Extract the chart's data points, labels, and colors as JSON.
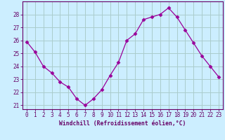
{
  "x": [
    0,
    1,
    2,
    3,
    4,
    5,
    6,
    7,
    8,
    9,
    10,
    11,
    12,
    13,
    14,
    15,
    16,
    17,
    18,
    19,
    20,
    21,
    22,
    23
  ],
  "y": [
    25.9,
    25.1,
    24.0,
    23.5,
    22.8,
    22.4,
    21.5,
    21.0,
    21.5,
    22.2,
    23.3,
    24.3,
    26.0,
    26.5,
    27.6,
    27.8,
    28.0,
    28.5,
    27.8,
    26.8,
    25.8,
    24.8,
    24.0,
    23.2
  ],
  "line_color": "#990099",
  "marker": "D",
  "marker_size": 2.5,
  "bg_color": "#cceeff",
  "grid_color": "#aacccc",
  "xlabel": "Windchill (Refroidissement éolien,°C)",
  "xlabel_color": "#660066",
  "tick_color": "#660066",
  "ylim": [
    20.7,
    29.0
  ],
  "yticks": [
    21,
    22,
    23,
    24,
    25,
    26,
    27,
    28
  ],
  "xlim": [
    -0.5,
    23.5
  ],
  "xticks": [
    0,
    1,
    2,
    3,
    4,
    5,
    6,
    7,
    8,
    9,
    10,
    11,
    12,
    13,
    14,
    15,
    16,
    17,
    18,
    19,
    20,
    21,
    22,
    23
  ],
  "xtick_labels": [
    "0",
    "1",
    "2",
    "3",
    "4",
    "5",
    "6",
    "7",
    "8",
    "9",
    "10",
    "11",
    "12",
    "13",
    "14",
    "15",
    "16",
    "17",
    "18",
    "19",
    "20",
    "21",
    "22",
    "23"
  ],
  "border_color": "#660066",
  "spine_color": "#660066"
}
